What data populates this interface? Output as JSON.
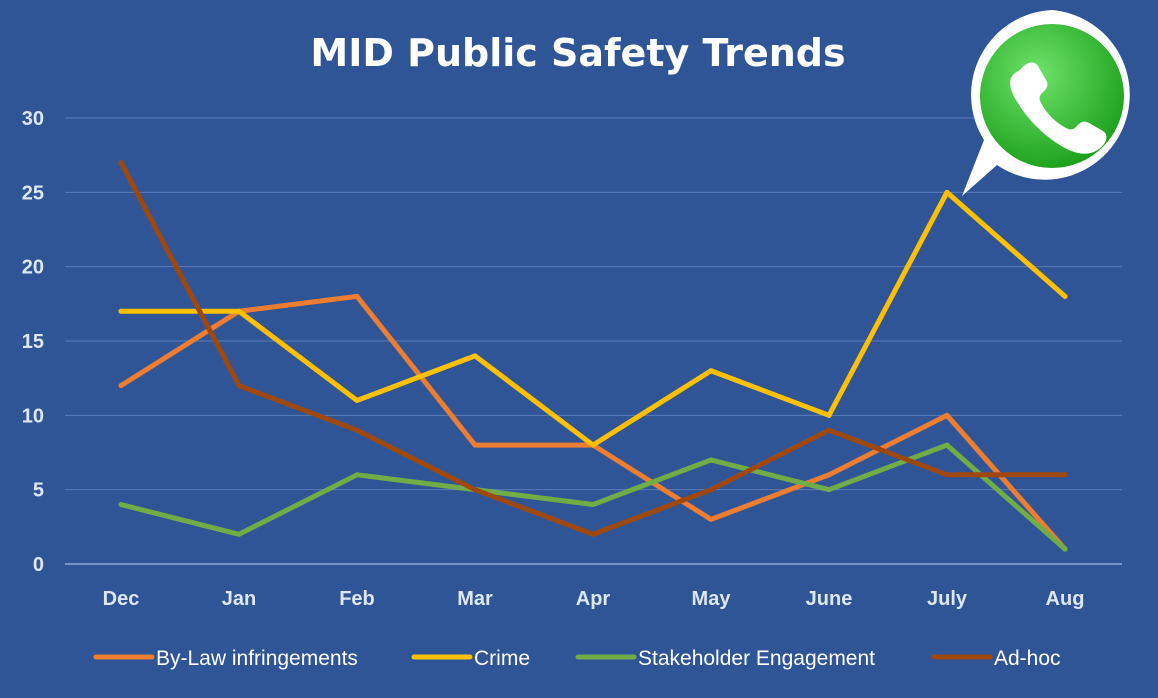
{
  "logo": {
    "icon": "whatsapp-icon",
    "bubble_color": "#25d366"
  },
  "chart_data": {
    "type": "line",
    "title": "MID Public Safety Trends",
    "xlabel": "",
    "ylabel": "",
    "categories": [
      "Dec",
      "Jan",
      "Feb",
      "Mar",
      "Apr",
      "May",
      "June",
      "July",
      "Aug"
    ],
    "ylim": [
      0,
      30
    ],
    "yticks": [
      "0",
      "5",
      "10",
      "15",
      "20",
      "25",
      "30"
    ],
    "grid": true,
    "legend_position": "bottom",
    "series": [
      {
        "name": "By-Law infringements",
        "color": "#ed7d31",
        "values": [
          12,
          17,
          18,
          8,
          8,
          3,
          6,
          10,
          1
        ]
      },
      {
        "name": "Crime",
        "color": "#ffc000",
        "values": [
          17,
          17,
          11,
          14,
          8,
          13,
          10,
          25,
          18
        ]
      },
      {
        "name": "Stakeholder Engagement",
        "color": "#70ad47",
        "values": [
          4,
          2,
          6,
          5,
          4,
          7,
          5,
          8,
          1
        ]
      },
      {
        "name": "Ad-hoc",
        "color": "#9e480e",
        "values": [
          27,
          12,
          9,
          5,
          2,
          5,
          9,
          6,
          6
        ]
      }
    ]
  }
}
